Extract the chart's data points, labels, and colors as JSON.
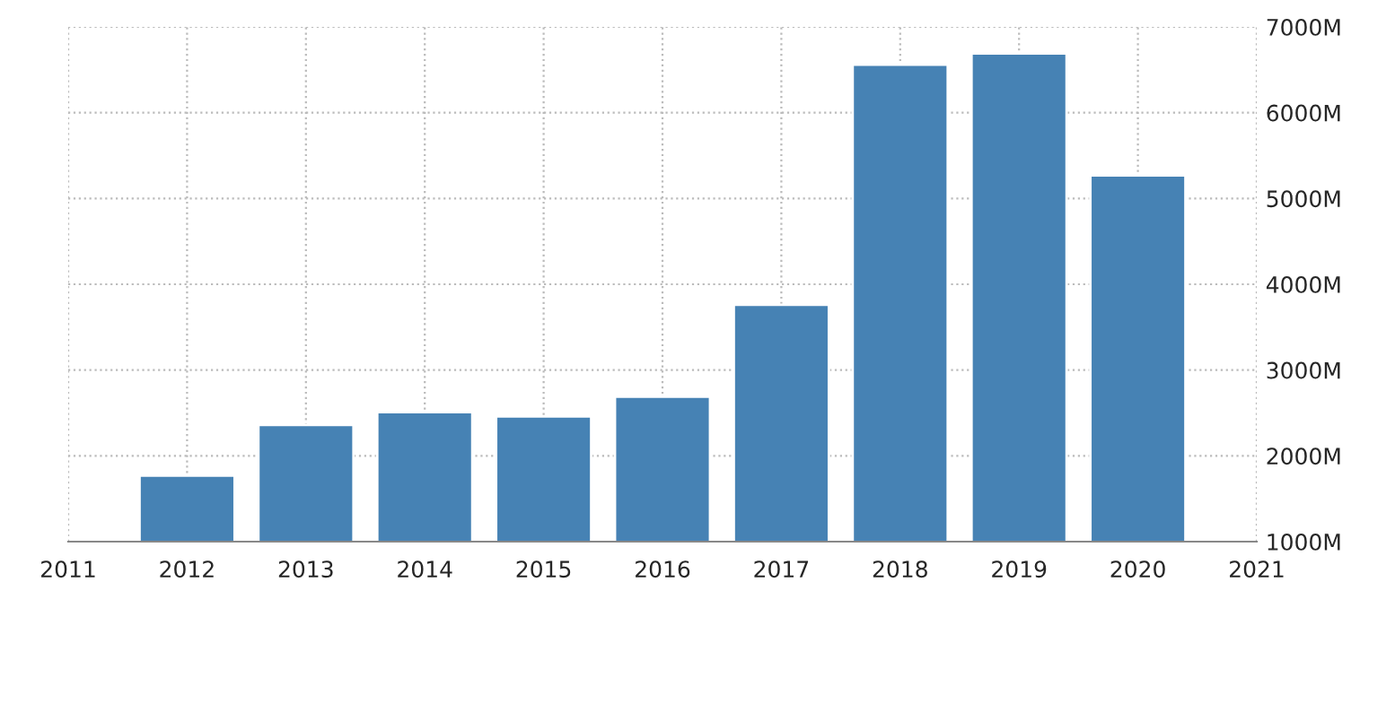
{
  "chart_data": {
    "type": "bar",
    "x": [
      2012,
      2013,
      2014,
      2015,
      2016,
      2017,
      2018,
      2019,
      2020
    ],
    "series": [
      {
        "color": "#4682b4",
        "values": [
          1770,
          2360,
          2510,
          2460,
          2690,
          3760,
          6560,
          6690,
          5270
        ]
      }
    ],
    "xlim": [
      2011,
      2021
    ],
    "xticks": [
      2011,
      2012,
      2013,
      2014,
      2015,
      2016,
      2017,
      2018,
      2019,
      2020,
      2021
    ],
    "ylim": [
      1000,
      7000
    ],
    "yticks": [
      {
        "value": 1000,
        "label": "1000M"
      },
      {
        "value": 2000,
        "label": "2000M"
      },
      {
        "value": 3000,
        "label": "3000M"
      },
      {
        "value": 4000,
        "label": "4000M"
      },
      {
        "value": 5000,
        "label": "5000M"
      },
      {
        "value": 6000,
        "label": "6000M"
      },
      {
        "value": 7000,
        "label": "7000M"
      }
    ],
    "grid": true
  }
}
